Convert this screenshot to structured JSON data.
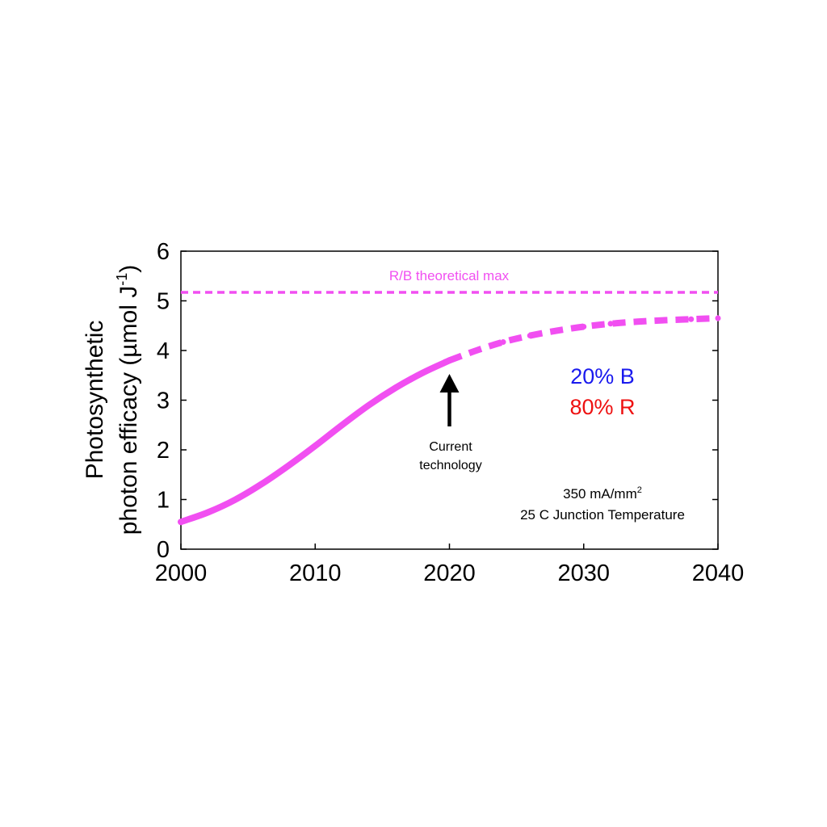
{
  "chart_data": {
    "type": "line",
    "ylabel_line1": "Photosynthetic",
    "ylabel_line2_prefix": "photon efficacy (µmol J",
    "ylabel_line2_exp": "-1",
    "ylabel_line2_suffix": ")",
    "xlim": [
      2000,
      2040
    ],
    "ylim": [
      0,
      6
    ],
    "x_ticks": [
      2000,
      2010,
      2020,
      2030,
      2040
    ],
    "y_ticks": [
      0,
      1,
      2,
      3,
      4,
      5,
      6
    ],
    "x_tick_labels": [
      "2000",
      "2010",
      "2020",
      "2030",
      "2040"
    ],
    "y_tick_labels": [
      "0",
      "1",
      "2",
      "3",
      "4",
      "5",
      "6"
    ],
    "grid": false,
    "series_color": "#f14ff1",
    "reference_line": {
      "y": 5.17,
      "label": "R/B theoretical max"
    },
    "series": [
      {
        "style": "solid",
        "x": [
          2000,
          2002,
          2004,
          2006,
          2008,
          2010,
          2012,
          2014,
          2016,
          2018,
          2020
        ],
        "y": [
          0.55,
          0.74,
          0.99,
          1.31,
          1.68,
          2.08,
          2.5,
          2.9,
          3.25,
          3.55,
          3.8
        ]
      },
      {
        "style": "dashed",
        "x": [
          2020,
          2022,
          2024,
          2026,
          2028,
          2030,
          2032,
          2034,
          2036,
          2038,
          2040
        ],
        "y": [
          3.8,
          4.0,
          4.17,
          4.3,
          4.4,
          4.48,
          4.54,
          4.58,
          4.61,
          4.63,
          4.65
        ]
      }
    ],
    "annotations": {
      "arrow_label_line1": "Current",
      "arrow_label_line2": "technology",
      "arrow_x": 2020,
      "mix_blue": "20% B",
      "mix_red": "80% R",
      "mix_blue_color": "#1a1aee",
      "mix_red_color": "#ee1111",
      "condition_line1_base": "350 mA/mm",
      "condition_line1_exp": "2",
      "condition_line2": "25 C Junction Temperature"
    }
  }
}
